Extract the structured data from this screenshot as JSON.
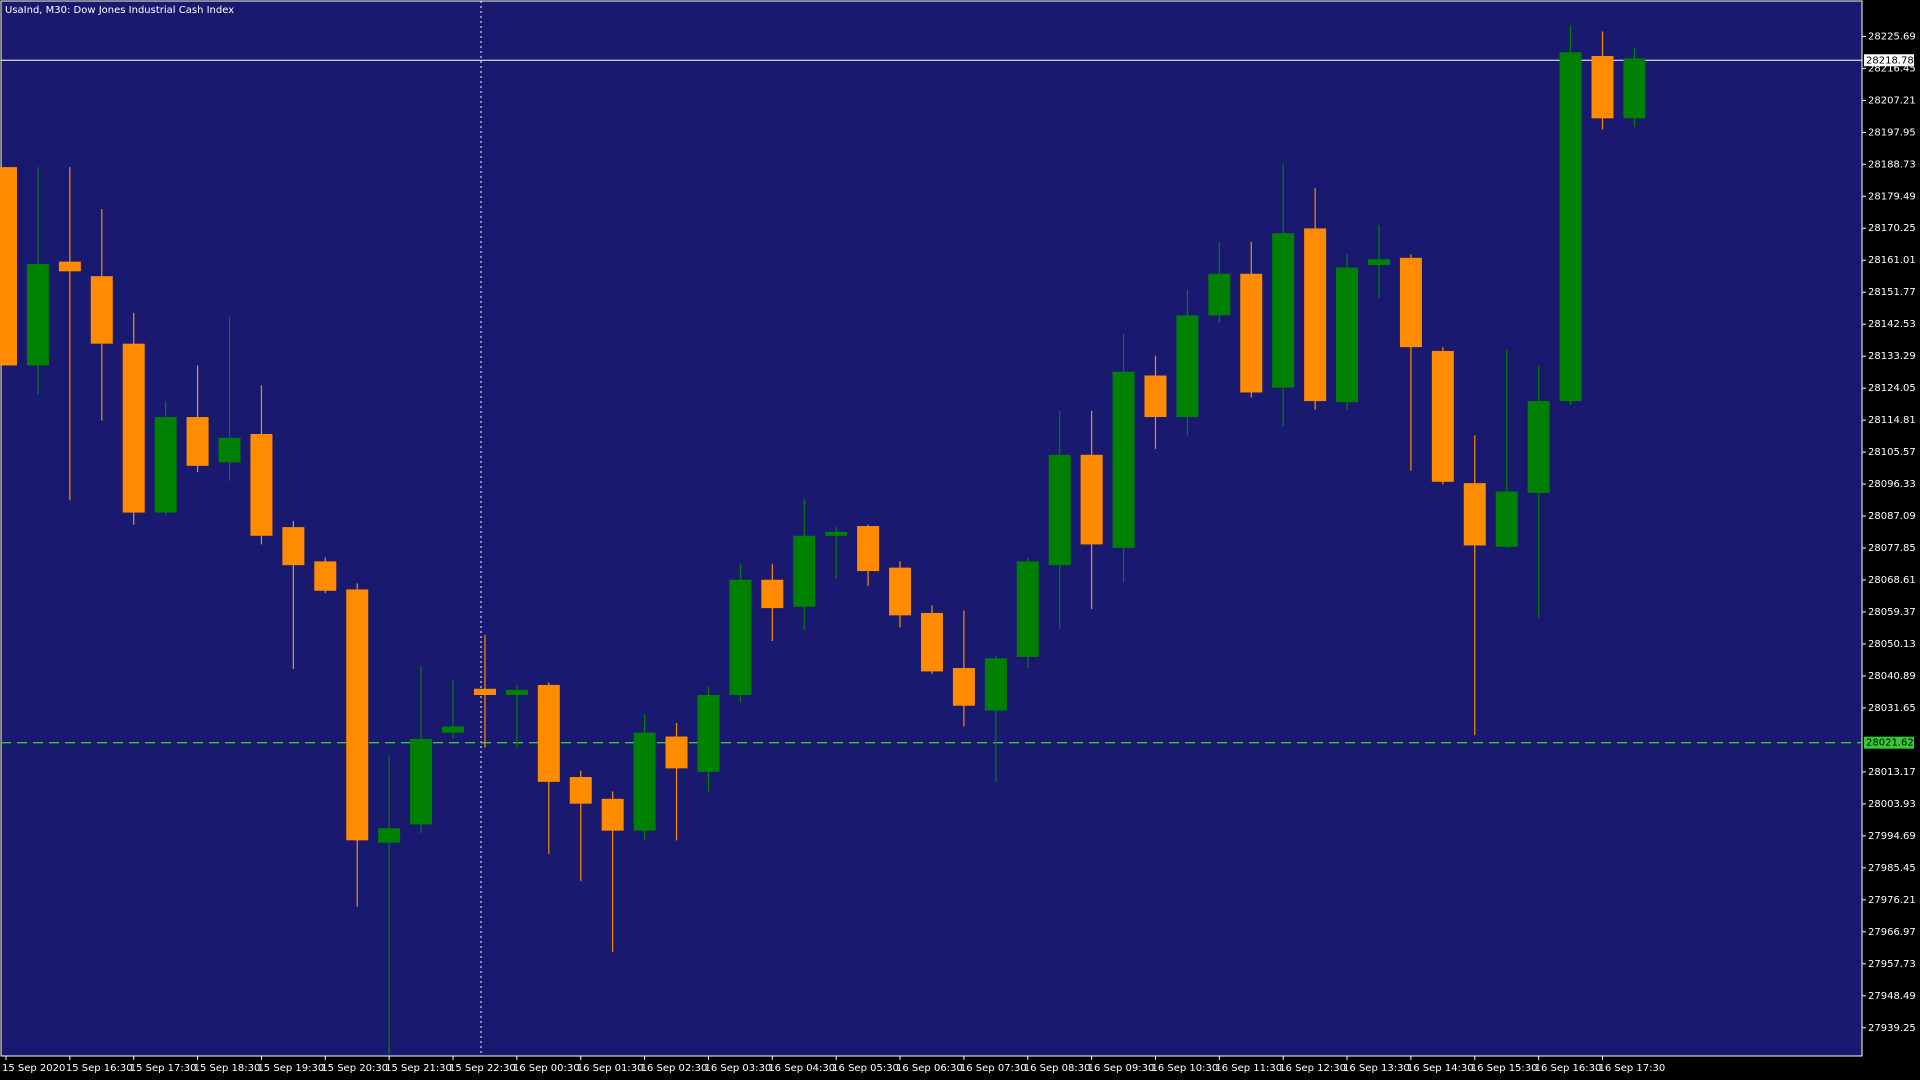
{
  "chart_data": {
    "type": "candlestick",
    "title": "UsaInd, M30:  Dow Jones Industrial Cash Index",
    "categories": [
      "15 Sep 2020",
      null,
      "15 Sep 16:30",
      null,
      "15 Sep 17:30",
      null,
      "15 Sep 18:30",
      null,
      "15 Sep 19:30",
      null,
      "15 Sep 20:30",
      null,
      "15 Sep 21:30",
      null,
      "15 Sep 22:30",
      null,
      "16 Sep 00:30",
      null,
      "16 Sep 01:30",
      null,
      "16 Sep 02:30",
      null,
      "16 Sep 03:30",
      null,
      "16 Sep 04:30",
      null,
      "16 Sep 05:30",
      null,
      "16 Sep 06:30",
      null,
      "16 Sep 07:30",
      null,
      "16 Sep 08:30",
      null,
      "16 Sep 09:30",
      null,
      "16 Sep 10:30",
      null,
      "16 Sep 11:30",
      null,
      "16 Sep 12:30",
      null,
      "16 Sep 13:30",
      null,
      "16 Sep 14:30",
      null,
      "16 Sep 15:30",
      null,
      "16 Sep 16:30",
      null,
      "16 Sep 17:30",
      null
    ],
    "open": [
      28187.9,
      28130.6,
      28160.6,
      28156.4,
      28136.9,
      28088.1,
      28115.7,
      28102.6,
      28110.8,
      28083.9,
      28074.0,
      28065.9,
      27992.7,
      27998.0,
      28024.5,
      28037.2,
      28035.4,
      28038.3,
      28011.7,
      28005.4,
      27996.2,
      28023.4,
      28013.2,
      28035.4,
      28068.7,
      28060.9,
      28081.4,
      28084.2,
      28072.2,
      28059.1,
      28043.2,
      28030.9,
      28046.4,
      28072.9,
      28104.8,
      28077.9,
      28127.7,
      28115.7,
      28145.1,
      28157.1,
      28124.2,
      28170.2,
      28120.0,
      28159.6,
      28161.7,
      28134.8,
      28096.6,
      28078.2,
      28093.8,
      28120.3,
      28220.0,
      28202.0
    ],
    "high": [
      28187.9,
      28187.9,
      28187.9,
      28175.8,
      28145.8,
      28120.3,
      28130.6,
      28144.7,
      28124.9,
      28085.7,
      28075.1,
      28067.6,
      28017.8,
      28043.9,
      28039.7,
      28052.8,
      28038.3,
      28039.0,
      28013.5,
      28007.5,
      28029.8,
      28027.3,
      28037.9,
      28073.3,
      28073.3,
      28092.0,
      28083.9,
      28084.6,
      28074.0,
      28061.3,
      28059.8,
      28046.8,
      28075.1,
      28117.5,
      28117.5,
      28139.8,
      28133.4,
      28152.5,
      28166.3,
      28166.3,
      28188.9,
      28181.8,
      28162.7,
      28171.2,
      28162.7,
      28135.9,
      28110.4,
      28135.2,
      28130.6,
      28228.9,
      28227.1,
      28222.5
    ],
    "low": [
      28130.6,
      28122.1,
      28091.7,
      28114.7,
      28084.6,
      28087.4,
      28099.8,
      28097.3,
      28078.9,
      28042.9,
      28064.8,
      27974.3,
      27931.5,
      27995.5,
      28022.7,
      28020.2,
      28020.2,
      27989.5,
      27981.7,
      27961.2,
      27993.7,
      27993.4,
      28007.5,
      28033.3,
      28051.0,
      28054.2,
      28069.0,
      28066.9,
      28054.9,
      28041.5,
      28026.3,
      28010.3,
      28043.2,
      28054.5,
      28060.2,
      28068.0,
      28106.5,
      28110.4,
      28142.9,
      28121.4,
      28112.9,
      28117.8,
      28117.8,
      28150.0,
      28100.2,
      28096.3,
      28023.8,
      28077.9,
      28057.7,
      28119.2,
      28198.8,
      28199.5
    ],
    "close": [
      28130.6,
      28159.9,
      28157.8,
      28136.9,
      28088.1,
      28115.7,
      28101.6,
      28109.7,
      28081.4,
      28072.9,
      28065.5,
      27993.4,
      27996.9,
      28022.7,
      28026.3,
      28035.4,
      28036.9,
      28010.3,
      28004.0,
      27996.2,
      28024.5,
      28014.2,
      28035.4,
      28068.7,
      28060.5,
      28081.4,
      28082.5,
      28071.2,
      28058.4,
      28042.2,
      28032.3,
      28046.0,
      28074.0,
      28104.8,
      28078.9,
      28128.8,
      28115.7,
      28145.1,
      28157.1,
      28122.8,
      28168.8,
      28120.3,
      28158.9,
      28161.3,
      28135.9,
      28097.0,
      28078.6,
      28094.2,
      28120.3,
      28221.1,
      28202.0,
      28219.3
    ],
    "up_color": "#008000",
    "down_color": "#ff8c00",
    "background": "#191970",
    "ylim": [
      27931.1,
      28235.9
    ],
    "yticks": [
      28225.69,
      28216.45,
      28207.21,
      28197.95,
      28188.73,
      28179.49,
      28170.25,
      28161.01,
      28151.77,
      28142.53,
      28133.29,
      28124.05,
      28114.81,
      28105.57,
      28096.33,
      28087.09,
      28077.85,
      28068.61,
      28059.37,
      28050.13,
      28040.89,
      28031.65,
      28013.17,
      28003.93,
      27994.69,
      27985.45,
      27976.21,
      27966.97,
      27957.73,
      27948.49,
      27939.25
    ],
    "bid_line": 28218.78,
    "level_line": 28021.62,
    "level_color": "#32cd32",
    "grid": false
  }
}
